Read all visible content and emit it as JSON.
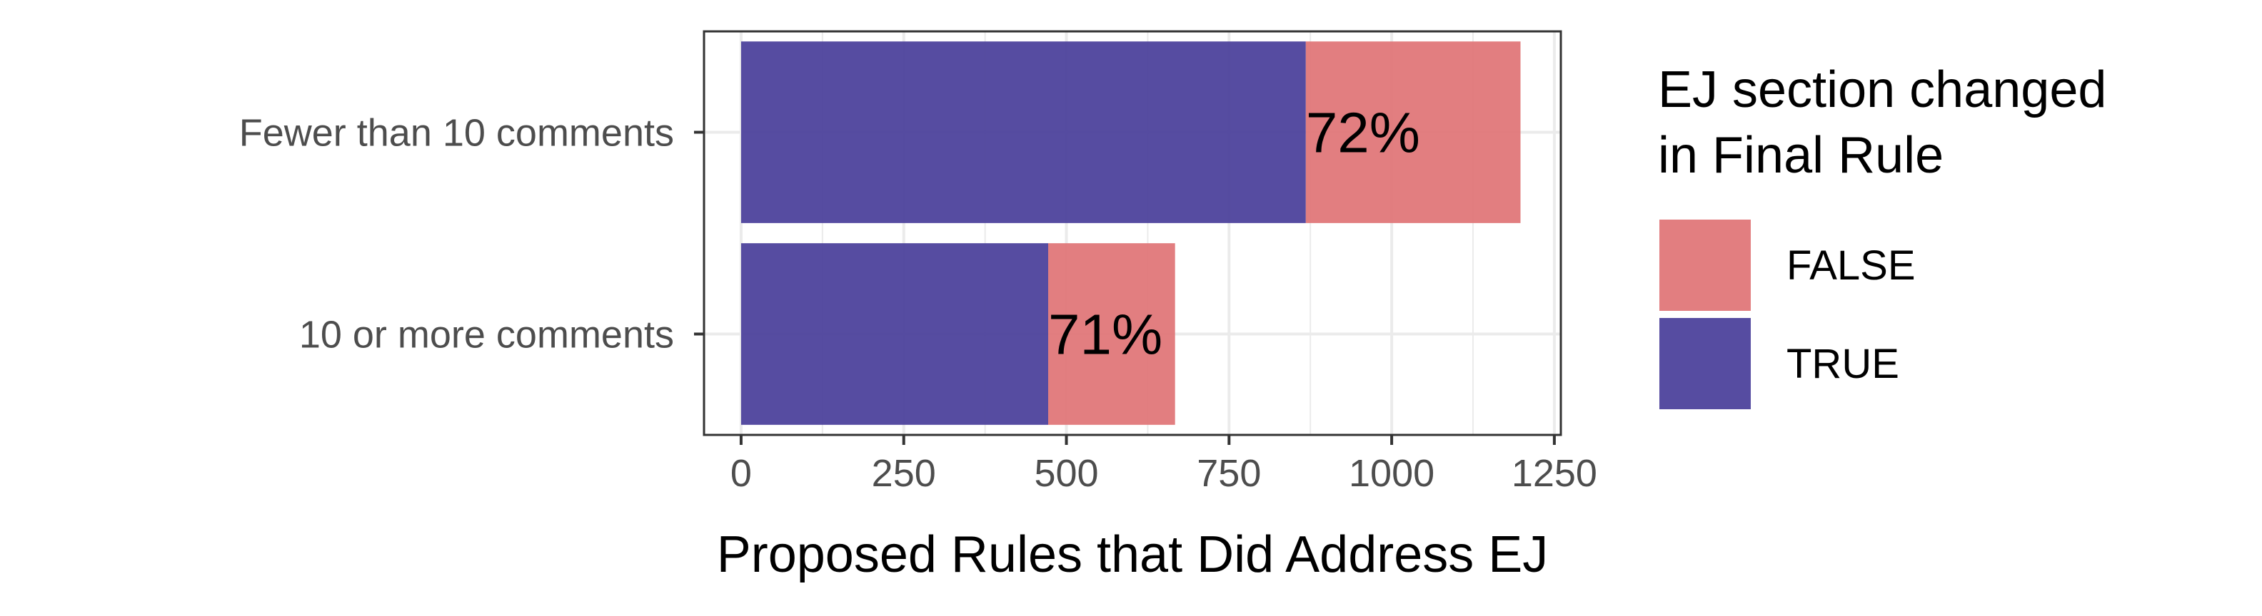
{
  "chart_data": {
    "type": "bar",
    "orientation": "horizontal",
    "stacked": true,
    "categories": [
      "Fewer than 10 comments",
      "10 or more comments"
    ],
    "series": [
      {
        "name": "TRUE",
        "values": [
          868,
          472
        ],
        "color": "#483D99"
      },
      {
        "name": "FALSE",
        "values": [
          330,
          195
        ],
        "color": "#E07375"
      }
    ],
    "data_labels": [
      "72%",
      "71%"
    ],
    "xlabel": "Proposed Rules that Did Address EJ",
    "ylabel": "",
    "xlim": [
      -57,
      1260
    ],
    "x_ticks": [
      0,
      250,
      500,
      750,
      1000,
      1250
    ],
    "x_tick_labels": [
      "0",
      "250",
      "500",
      "750",
      "1000",
      "1250"
    ],
    "grid": true,
    "legend": {
      "title": "EJ section changed in Final Rule",
      "title_lines": [
        "EJ section changed",
        "in Final Rule"
      ],
      "entries": [
        {
          "label": "FALSE",
          "color": "#E07375"
        },
        {
          "label": "TRUE",
          "color": "#483D99"
        }
      ],
      "placement": "right"
    }
  }
}
